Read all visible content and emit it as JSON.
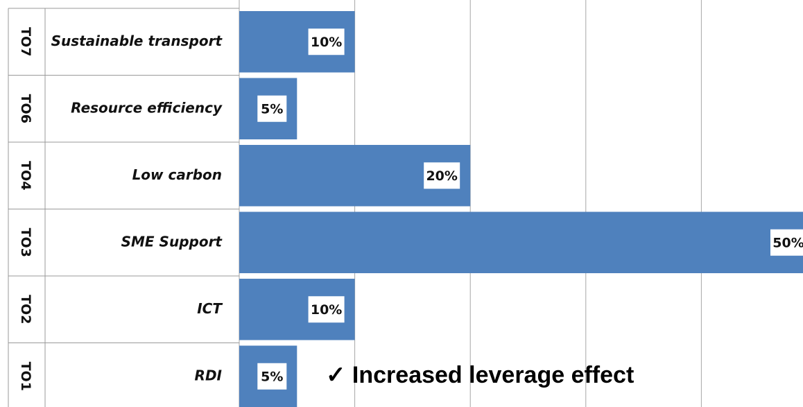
{
  "chart_data": {
    "type": "hbar",
    "codes": [
      "TO7",
      "TO6",
      "TO4",
      "TO3",
      "TO2",
      "TO1"
    ],
    "categories": [
      "Sustainable transport",
      "Resource efficiency",
      "Low carbon",
      "SME Support",
      "ICT",
      "RDI"
    ],
    "values": [
      10,
      5,
      20,
      50,
      10,
      5
    ],
    "value_labels": [
      "10%",
      "5%",
      "20%",
      "50%",
      "10%",
      "5%"
    ],
    "color": "#4f81bd",
    "xlim": [
      0,
      50
    ],
    "xticks": [
      0,
      10,
      20,
      30,
      40,
      50
    ],
    "grid": true,
    "annotation": "✓ Increased leverage effect"
  }
}
